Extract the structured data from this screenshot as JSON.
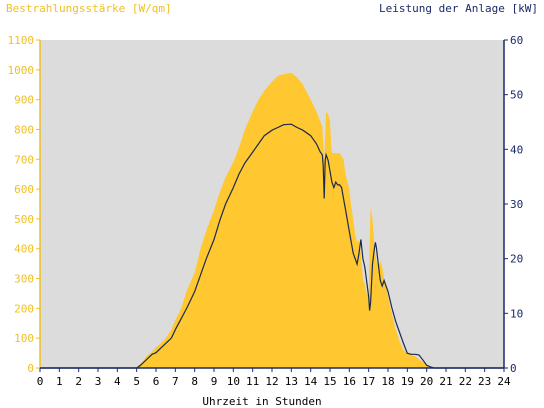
{
  "chart_data": {
    "type": "area",
    "left_label": "Bestrahlungsstärke [W/qm]",
    "right_label": "Leistung der Anlage [kW]",
    "xlabel": "Uhrzeit in Stunden",
    "xlim": [
      0,
      24
    ],
    "x_ticks": [
      "0",
      "1",
      "2",
      "3",
      "4",
      "5",
      "6",
      "7",
      "8",
      "9",
      "10",
      "11",
      "12",
      "13",
      "14",
      "15",
      "16",
      "17",
      "18",
      "19",
      "20",
      "21",
      "22",
      "23",
      "24"
    ],
    "y_left_lim": [
      0,
      1100
    ],
    "y_left_ticks": [
      "0",
      "100",
      "200",
      "300",
      "400",
      "500",
      "600",
      "700",
      "800",
      "900",
      "1000",
      "1100"
    ],
    "y_right_lim": [
      0,
      60
    ],
    "y_right_ticks": [
      "0",
      "10",
      "20",
      "30",
      "40",
      "50",
      "60"
    ],
    "grid": false,
    "colors": {
      "left_axis": "#f0c020",
      "right_axis": "#1a2a6a",
      "area_fill": "#ffc830",
      "line": "#1a2a50",
      "plot_bg": "#dcdcdc"
    },
    "series": [
      {
        "type": "area",
        "axis": "left",
        "x": [
          0,
          5,
          5.1,
          5.3,
          5.5,
          5.8,
          6,
          6.2,
          6.5,
          6.8,
          7,
          7.3,
          7.6,
          8,
          8.3,
          8.6,
          9,
          9.3,
          9.6,
          10,
          10.3,
          10.6,
          11,
          11.3,
          11.6,
          12,
          12.3,
          12.6,
          13,
          13.3,
          13.6,
          14,
          14.3,
          14.6,
          14.7,
          14.75,
          14.8,
          14.9,
          15,
          15.05,
          15.1,
          15.3,
          15.5,
          15.7,
          15.8,
          16,
          16.1,
          16.2,
          16.3,
          16.4,
          16.5,
          16.6,
          16.7,
          16.8,
          16.9,
          17,
          17.05,
          17.1,
          17.2,
          17.3,
          17.35,
          17.4,
          17.5,
          17.6,
          17.7,
          17.8,
          18,
          18.2,
          18.4,
          18.6,
          18.8,
          19,
          19.2,
          19.4,
          19.6,
          19.8,
          20,
          20.1,
          20.2,
          20.4,
          20.6,
          24
        ],
        "values": [
          0,
          0,
          10,
          20,
          40,
          55,
          70,
          80,
          100,
          130,
          160,
          200,
          260,
          320,
          400,
          460,
          530,
          590,
          640,
          690,
          740,
          800,
          860,
          900,
          930,
          960,
          980,
          985,
          990,
          975,
          950,
          900,
          860,
          810,
          700,
          780,
          860,
          850,
          830,
          760,
          720,
          720,
          720,
          700,
          650,
          600,
          540,
          500,
          450,
          420,
          430,
          380,
          300,
          280,
          250,
          240,
          400,
          540,
          500,
          400,
          380,
          360,
          340,
          360,
          340,
          300,
          240,
          180,
          130,
          90,
          60,
          50,
          45,
          40,
          30,
          20,
          10,
          5,
          0,
          0,
          0,
          0
        ]
      },
      {
        "type": "line",
        "axis": "right",
        "x": [
          0,
          5,
          5.2,
          5.5,
          5.8,
          6,
          6.2,
          6.5,
          6.8,
          7,
          7.3,
          7.6,
          8,
          8.3,
          8.6,
          9,
          9.3,
          9.6,
          10,
          10.3,
          10.6,
          11,
          11.3,
          11.6,
          12,
          12.3,
          12.6,
          13,
          13.3,
          13.6,
          14,
          14.3,
          14.5,
          14.6,
          14.65,
          14.7,
          14.75,
          14.8,
          14.9,
          15,
          15.1,
          15.2,
          15.3,
          15.4,
          15.5,
          15.6,
          15.7,
          15.8,
          16,
          16.2,
          16.4,
          16.5,
          16.6,
          16.7,
          16.8,
          17,
          17.05,
          17.1,
          17.2,
          17.3,
          17.35,
          17.4,
          17.5,
          17.6,
          17.7,
          17.8,
          18,
          18.2,
          18.4,
          18.6,
          18.8,
          19,
          19.2,
          19.4,
          19.6,
          19.8,
          20,
          20.2,
          20.4,
          24
        ],
        "values": [
          0,
          0,
          0.5,
          1.5,
          2.5,
          2.8,
          3.5,
          4.5,
          5.5,
          7,
          9,
          11,
          14,
          17,
          20,
          23.5,
          27,
          30,
          33,
          35.5,
          37.5,
          39.5,
          41,
          42.5,
          43.5,
          44,
          44.5,
          44.6,
          44,
          43.5,
          42.5,
          41,
          39.5,
          39,
          37,
          31,
          38,
          39,
          38,
          36,
          34,
          33,
          34,
          33.5,
          33.5,
          33,
          31,
          29,
          25,
          21,
          19,
          21,
          23.5,
          20,
          18.5,
          13,
          10.5,
          12,
          19,
          22,
          23,
          22,
          19,
          16,
          15,
          16,
          14,
          11,
          8.5,
          6.5,
          4.5,
          2.7,
          2.5,
          2.5,
          2.4,
          1.5,
          0.5,
          0.2,
          0,
          0
        ]
      }
    ]
  }
}
